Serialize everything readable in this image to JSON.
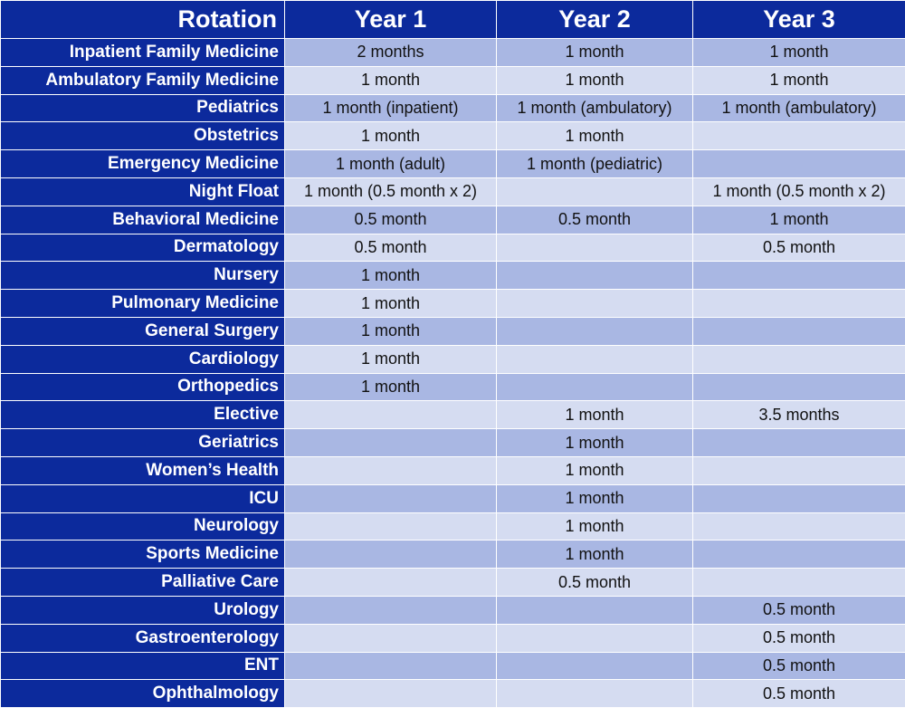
{
  "header": {
    "rotation": "Rotation",
    "year1": "Year 1",
    "year2": "Year 2",
    "year3": "Year 3"
  },
  "rows": [
    {
      "rotation": "Inpatient Family Medicine",
      "y1": "2 months",
      "y2": "1 month",
      "y3": "1 month"
    },
    {
      "rotation": "Ambulatory Family Medicine",
      "y1": "1 month",
      "y2": "1 month",
      "y3": "1 month"
    },
    {
      "rotation": "Pediatrics",
      "y1": "1 month (inpatient)",
      "y2": "1 month (ambulatory)",
      "y3": "1 month (ambulatory)"
    },
    {
      "rotation": "Obstetrics",
      "y1": "1 month",
      "y2": "1 month",
      "y3": ""
    },
    {
      "rotation": "Emergency Medicine",
      "y1": "1 month (adult)",
      "y2": "1 month (pediatric)",
      "y3": ""
    },
    {
      "rotation": "Night Float",
      "y1": "1 month (0.5 month x 2)",
      "y2": "",
      "y3": "1 month (0.5 month x 2)"
    },
    {
      "rotation": "Behavioral Medicine",
      "y1": "0.5 month",
      "y2": "0.5 month",
      "y3": "1 month"
    },
    {
      "rotation": "Dermatology",
      "y1": "0.5 month",
      "y2": "",
      "y3": "0.5 month"
    },
    {
      "rotation": "Nursery",
      "y1": "1 month",
      "y2": "",
      "y3": ""
    },
    {
      "rotation": "Pulmonary Medicine",
      "y1": "1 month",
      "y2": "",
      "y3": ""
    },
    {
      "rotation": "General Surgery",
      "y1": "1 month",
      "y2": "",
      "y3": ""
    },
    {
      "rotation": "Cardiology",
      "y1": "1 month",
      "y2": "",
      "y3": ""
    },
    {
      "rotation": "Orthopedics",
      "y1": "1 month",
      "y2": "",
      "y3": ""
    },
    {
      "rotation": "Elective",
      "y1": "",
      "y2": "1 month",
      "y3": "3.5 months"
    },
    {
      "rotation": "Geriatrics",
      "y1": "",
      "y2": "1 month",
      "y3": ""
    },
    {
      "rotation": "Women’s Health",
      "y1": "",
      "y2": "1 month",
      "y3": ""
    },
    {
      "rotation": "ICU",
      "y1": "",
      "y2": "1 month",
      "y3": ""
    },
    {
      "rotation": "Neurology",
      "y1": "",
      "y2": "1 month",
      "y3": ""
    },
    {
      "rotation": "Sports Medicine",
      "y1": "",
      "y2": "1 month",
      "y3": ""
    },
    {
      "rotation": "Palliative Care",
      "y1": "",
      "y2": "0.5 month",
      "y3": ""
    },
    {
      "rotation": "Urology",
      "y1": "",
      "y2": "",
      "y3": "0.5 month"
    },
    {
      "rotation": "Gastroenterology",
      "y1": "",
      "y2": "",
      "y3": "0.5 month"
    },
    {
      "rotation": "ENT",
      "y1": "",
      "y2": "",
      "y3": "0.5 month"
    },
    {
      "rotation": "Ophthalmology",
      "y1": "",
      "y2": "",
      "y3": "0.5 month"
    }
  ]
}
